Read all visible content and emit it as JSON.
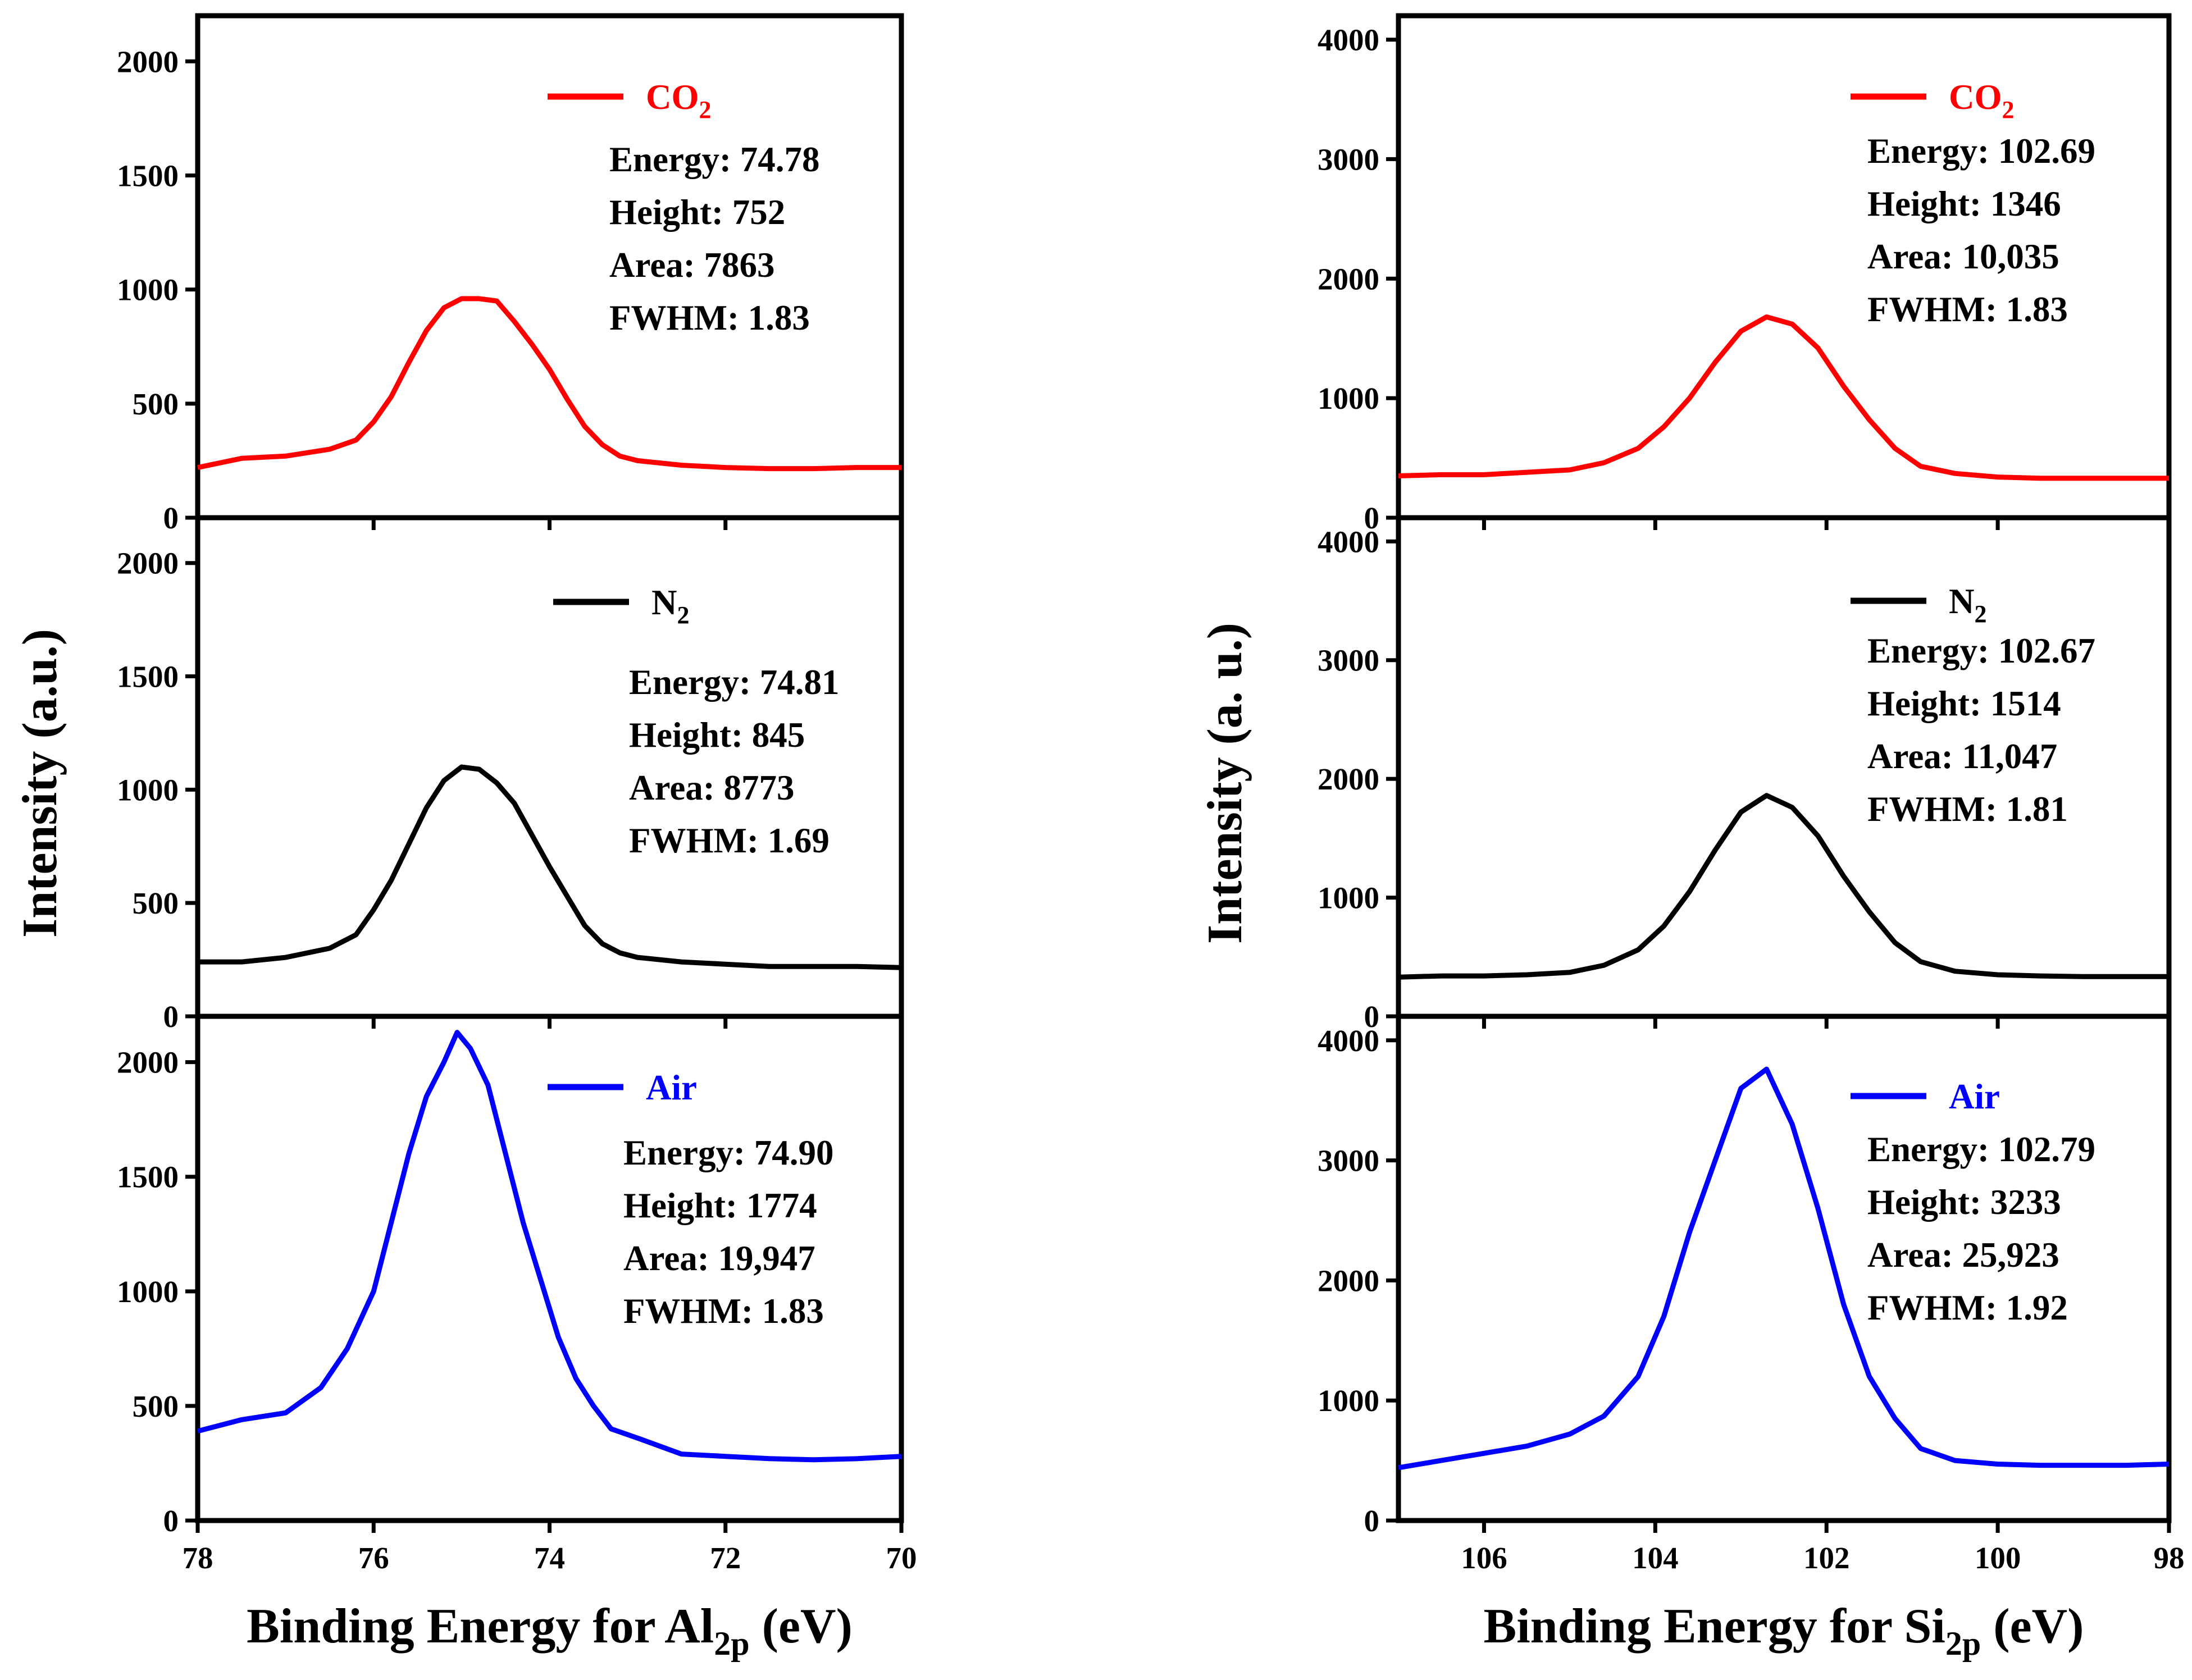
{
  "figure": {
    "ylabel_left": "Intensity (a.u.)",
    "ylabel_right": "Intensity (a. u.)"
  },
  "chart_data": [
    {
      "type": "line",
      "column": "left",
      "row": 0,
      "xlabel": "",
      "xlim": [
        78,
        70
      ],
      "ylim": [
        0,
        2200
      ],
      "yticks": [
        "0",
        "500",
        "1000",
        "1500",
        "2000"
      ],
      "xticks": [
        "78",
        "76",
        "74",
        "72",
        "70"
      ],
      "legend": {
        "label": "CO",
        "sub": "2",
        "color": "#ff0000"
      },
      "annotations": [
        "Energy: 74.78",
        "Height: 752",
        "Area: 7863",
        "FWHM: 1.83"
      ],
      "series": [
        {
          "color": "#ff0000",
          "x": [
            78.0,
            77.5,
            77.0,
            76.5,
            76.2,
            76.0,
            75.8,
            75.6,
            75.4,
            75.2,
            75.0,
            74.8,
            74.6,
            74.4,
            74.2,
            74.0,
            73.8,
            73.6,
            73.4,
            73.2,
            73.0,
            72.5,
            72.0,
            71.5,
            71.0,
            70.5,
            70.0
          ],
          "y": [
            220,
            260,
            270,
            300,
            340,
            420,
            530,
            680,
            820,
            920,
            960,
            960,
            950,
            860,
            760,
            650,
            520,
            400,
            320,
            270,
            250,
            230,
            220,
            215,
            215,
            220,
            220
          ]
        }
      ]
    },
    {
      "type": "line",
      "column": "left",
      "row": 1,
      "xlabel": "",
      "xlim": [
        78,
        70
      ],
      "ylim": [
        0,
        2200
      ],
      "yticks": [
        "0",
        "500",
        "1000",
        "1500",
        "2000"
      ],
      "xticks": [
        "78",
        "76",
        "74",
        "72",
        "70"
      ],
      "legend": {
        "label": "N",
        "sub": "2",
        "color": "#000000"
      },
      "annotations": [
        "Energy: 74.81",
        "Height: 845",
        "Area: 8773",
        "FWHM: 1.69"
      ],
      "series": [
        {
          "color": "#000000",
          "x": [
            78.0,
            77.5,
            77.0,
            76.5,
            76.2,
            76.0,
            75.8,
            75.6,
            75.4,
            75.2,
            75.0,
            74.8,
            74.6,
            74.4,
            74.2,
            74.0,
            73.8,
            73.6,
            73.4,
            73.2,
            73.0,
            72.5,
            72.0,
            71.5,
            71.0,
            70.5,
            70.0
          ],
          "y": [
            240,
            240,
            260,
            300,
            360,
            470,
            600,
            760,
            920,
            1040,
            1100,
            1090,
            1030,
            940,
            800,
            660,
            530,
            400,
            320,
            280,
            260,
            240,
            230,
            220,
            220,
            220,
            215
          ]
        }
      ]
    },
    {
      "type": "line",
      "column": "left",
      "row": 2,
      "xlabel": "Binding Energy for Al",
      "xlabel_sub": "2p",
      "xlabel_tail": " (eV)",
      "xlim": [
        78,
        70
      ],
      "ylim": [
        0,
        2200
      ],
      "yticks": [
        "0",
        "500",
        "1000",
        "1500",
        "2000"
      ],
      "xticks": [
        "78",
        "76",
        "74",
        "72",
        "70"
      ],
      "legend": {
        "label": "Air",
        "sub": "",
        "color": "#0000ff"
      },
      "annotations": [
        "Energy: 74.90",
        "Height: 1774",
        "Area: 19,947",
        "FWHM: 1.83"
      ],
      "series": [
        {
          "color": "#0000ff",
          "x": [
            78.0,
            77.5,
            77.0,
            76.6,
            76.3,
            76.0,
            75.8,
            75.6,
            75.4,
            75.2,
            75.05,
            74.9,
            74.7,
            74.5,
            74.3,
            74.1,
            73.9,
            73.7,
            73.5,
            73.3,
            73.0,
            72.5,
            72.0,
            71.5,
            71.0,
            70.5,
            70.0
          ],
          "y": [
            390,
            440,
            470,
            580,
            750,
            1000,
            1300,
            1600,
            1850,
            2000,
            2130,
            2060,
            1900,
            1600,
            1300,
            1050,
            800,
            620,
            500,
            400,
            360,
            290,
            280,
            270,
            265,
            270,
            280
          ]
        }
      ]
    },
    {
      "type": "line",
      "column": "right",
      "row": 0,
      "xlabel": "",
      "xlim": [
        107,
        98
      ],
      "ylim": [
        0,
        4200
      ],
      "yticks": [
        "0",
        "1000",
        "2000",
        "3000",
        "4000"
      ],
      "xticks": [
        "106",
        "104",
        "102",
        "100",
        "98"
      ],
      "legend": {
        "label": "CO",
        "sub": "2",
        "color": "#ff0000"
      },
      "annotations": [
        "Energy: 102.69",
        "Height: 1346",
        "Area: 10,035",
        "FWHM: 1.83"
      ],
      "series": [
        {
          "color": "#ff0000",
          "x": [
            107.0,
            106.5,
            106.0,
            105.5,
            105.0,
            104.6,
            104.2,
            103.9,
            103.6,
            103.3,
            103.0,
            102.7,
            102.4,
            102.1,
            101.8,
            101.5,
            101.2,
            100.9,
            100.5,
            100.0,
            99.5,
            99.0,
            98.5,
            98.0
          ],
          "y": [
            350,
            360,
            360,
            380,
            400,
            460,
            580,
            760,
            1000,
            1300,
            1560,
            1680,
            1620,
            1420,
            1100,
            820,
            580,
            430,
            370,
            340,
            330,
            330,
            330,
            330
          ]
        }
      ]
    },
    {
      "type": "line",
      "column": "right",
      "row": 1,
      "xlabel": "",
      "xlim": [
        107,
        98
      ],
      "ylim": [
        0,
        4200
      ],
      "yticks": [
        "0",
        "1000",
        "2000",
        "3000",
        "4000"
      ],
      "xticks": [
        "106",
        "104",
        "102",
        "100",
        "98"
      ],
      "legend": {
        "label": "N",
        "sub": "2",
        "color": "#000000"
      },
      "annotations": [
        "Energy: 102.67",
        "Height: 1514",
        "Area: 11,047",
        "FWHM: 1.81"
      ],
      "series": [
        {
          "color": "#000000",
          "x": [
            107.0,
            106.5,
            106.0,
            105.5,
            105.0,
            104.6,
            104.2,
            103.9,
            103.6,
            103.3,
            103.0,
            102.7,
            102.4,
            102.1,
            101.8,
            101.5,
            101.2,
            100.9,
            100.5,
            100.0,
            99.5,
            99.0,
            98.5,
            98.0
          ],
          "y": [
            330,
            340,
            340,
            350,
            370,
            430,
            560,
            760,
            1050,
            1400,
            1720,
            1860,
            1760,
            1520,
            1180,
            880,
            620,
            460,
            380,
            350,
            340,
            335,
            335,
            335
          ]
        }
      ]
    },
    {
      "type": "line",
      "column": "right",
      "row": 2,
      "xlabel": "Binding Energy for Si",
      "xlabel_sub": "2p",
      "xlabel_tail": " (eV)",
      "xlim": [
        107,
        98
      ],
      "ylim": [
        0,
        4200
      ],
      "yticks": [
        "0",
        "1000",
        "2000",
        "3000",
        "4000"
      ],
      "xticks": [
        "106",
        "104",
        "102",
        "100",
        "98"
      ],
      "legend": {
        "label": "Air",
        "sub": "",
        "color": "#0000ff"
      },
      "annotations": [
        "Energy: 102.79",
        "Height: 3233",
        "Area: 25,923",
        "FWHM: 1.92"
      ],
      "series": [
        {
          "color": "#0000ff",
          "x": [
            107.0,
            106.5,
            106.0,
            105.5,
            105.0,
            104.6,
            104.2,
            103.9,
            103.6,
            103.3,
            103.0,
            102.7,
            102.4,
            102.1,
            101.8,
            101.5,
            101.2,
            100.9,
            100.5,
            100.0,
            99.5,
            99.0,
            98.5,
            98.0
          ],
          "y": [
            440,
            500,
            560,
            620,
            720,
            870,
            1200,
            1700,
            2400,
            3000,
            3600,
            3760,
            3300,
            2600,
            1800,
            1200,
            850,
            600,
            500,
            470,
            460,
            460,
            460,
            470
          ]
        }
      ]
    }
  ]
}
